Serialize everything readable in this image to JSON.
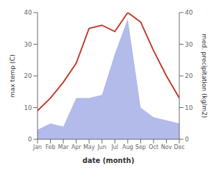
{
  "chart_data": {
    "type": "line",
    "categories": [
      "Jan",
      "Feb",
      "Mar",
      "Apr",
      "May",
      "Jun",
      "Jul",
      "Aug",
      "Sep",
      "Oct",
      "Nov",
      "Dec"
    ],
    "xlabel": "date (month)",
    "ylabel": "max temp (C)",
    "y2label": "med. precipitation (kg/m2)",
    "series": [
      {
        "type": "area",
        "axis": "y2",
        "color": "#aab4e8",
        "values": [
          3,
          5,
          4,
          13,
          13,
          14,
          27,
          38,
          10,
          7,
          6,
          5
        ]
      },
      {
        "type": "line",
        "axis": "y",
        "color": "#c0392b",
        "values": [
          9,
          13,
          18,
          24,
          35,
          36,
          34,
          40,
          37,
          28,
          20,
          13
        ]
      }
    ],
    "ylim": [
      0,
      40
    ],
    "yticks": [
      0,
      10,
      20,
      30,
      40
    ],
    "y2lim": [
      0,
      40
    ],
    "y2ticks": [
      0,
      10,
      20,
      30,
      40
    ],
    "grid": false
  }
}
